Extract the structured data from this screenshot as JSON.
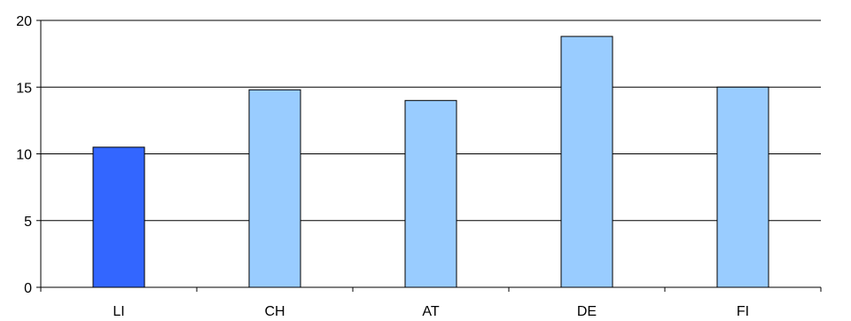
{
  "chart_data": {
    "type": "bar",
    "categories": [
      "LI",
      "CH",
      "AT",
      "DE",
      "FI"
    ],
    "values": [
      10.5,
      14.8,
      14.0,
      18.8,
      15.0
    ],
    "ylim": [
      0,
      20
    ],
    "yticks": [
      "0",
      "5",
      "10",
      "15",
      "20"
    ],
    "grid": true,
    "legend": "none",
    "colors": {
      "highlight": "#3366FF",
      "default": "#99CCFF",
      "outline": "#000000",
      "grid": "#000000"
    },
    "highlight_index": 0
  }
}
